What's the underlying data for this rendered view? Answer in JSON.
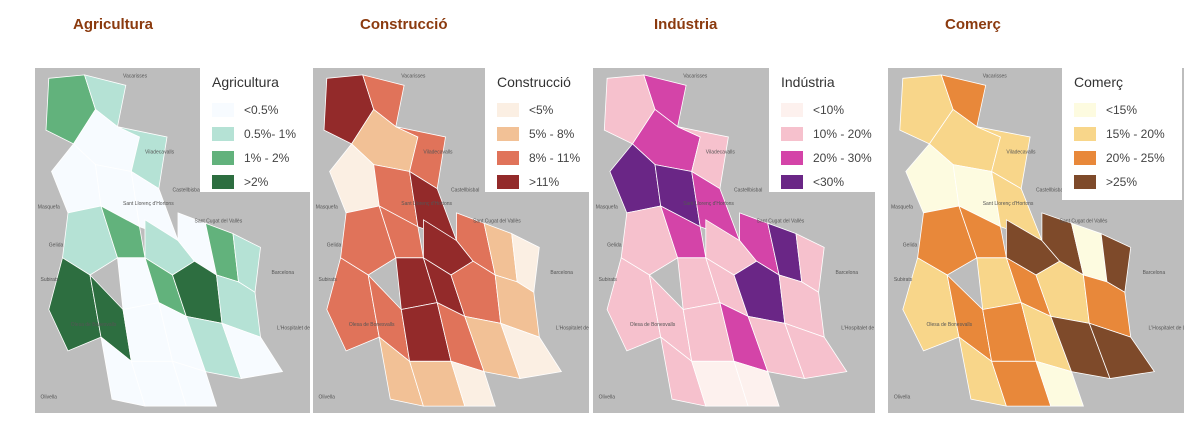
{
  "panels": [
    {
      "title": "Agricultura",
      "legend_title": "Agricultura",
      "legend": [
        {
          "label": "<0.5%",
          "color": "#f7fbff"
        },
        {
          "label": "0.5%- 1%",
          "color": "#b5e2d5"
        },
        {
          "label": "1% - 2%",
          "color": "#62b27c"
        },
        {
          "label": ">2%",
          "color": "#2d6e40"
        }
      ],
      "base_color": "#e3e9e6"
    },
    {
      "title": "Construcció",
      "legend_title": "Construcció",
      "legend": [
        {
          "label": "<5%",
          "color": "#fbefe3"
        },
        {
          "label": "5% - 8%",
          "color": "#f2c196"
        },
        {
          "label": "8% - 11%",
          "color": "#e0735a"
        },
        {
          "label": ">11%",
          "color": "#932a2a"
        }
      ],
      "base_color": "#f4ddd0"
    },
    {
      "title": "Indústria",
      "legend_title": "Indústria",
      "legend": [
        {
          "label": "<10%",
          "color": "#fdf1ee"
        },
        {
          "label": "10% - 20%",
          "color": "#f6c1cd"
        },
        {
          "label": "20% - 30%",
          "color": "#d444a8"
        },
        {
          "label": "<30%",
          "color": "#6a2686"
        }
      ],
      "base_color": "#f0d6dd"
    },
    {
      "title": "Comerç",
      "legend_title": "Comerç",
      "legend": [
        {
          "label": "<15%",
          "color": "#fdfbe0"
        },
        {
          "label": "15% - 20%",
          "color": "#f8d68a"
        },
        {
          "label": "20% - 25%",
          "color": "#e8883a"
        },
        {
          "label": ">25%",
          "color": "#7e4a2a"
        }
      ],
      "base_color": "#f1ebcf"
    }
  ],
  "places": [
    "Vacarisses",
    "Viladecavalls",
    "Castellbisbal",
    "Sant Cugat del Vallès",
    "Masquefa",
    "Sant Llorenç d'Hortons",
    "Gelida",
    "Subirats",
    "Barcelona",
    "Olesa de Bonesvalls",
    "L'Hospitalet de Llobregat",
    "Olivella"
  ]
}
